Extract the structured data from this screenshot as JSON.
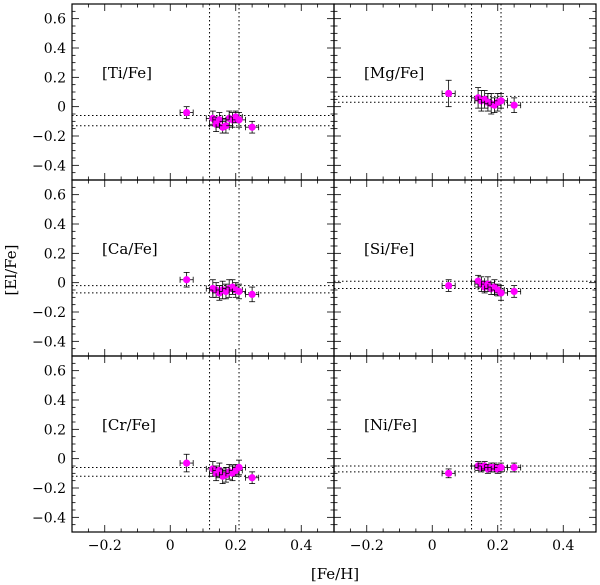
{
  "chart_data": {
    "type": "scatter",
    "layout": "3x2 panels with shared axes",
    "xlabel": "[Fe/H]",
    "ylabel": "[El/Fe]",
    "xlim": [
      -0.3,
      0.5
    ],
    "ylim": [
      -0.5,
      0.7
    ],
    "x_ticks": [
      -0.2,
      0,
      0.2,
      0.4
    ],
    "x_tick_labels": [
      "−0.2",
      "0",
      "0.2",
      "0.4"
    ],
    "y_ticks": [
      -0.4,
      -0.2,
      0,
      0.2,
      0.4,
      0.6
    ],
    "y_tick_labels": [
      "−0.4",
      "−0.2",
      "0",
      "0.2",
      "0.4",
      "0.6"
    ],
    "marker_color": "#ff00ff",
    "vertical_reference_lines": [
      0.12,
      0.21
    ],
    "panels": [
      {
        "label": "[Ti/Fe]",
        "horizontal_reference_lines": [
          -0.06,
          -0.13
        ],
        "points": [
          [
            0.05,
            -0.04
          ],
          [
            0.13,
            -0.08
          ],
          [
            0.14,
            -0.12
          ],
          [
            0.15,
            -0.09
          ],
          [
            0.16,
            -0.14
          ],
          [
            0.17,
            -0.13
          ],
          [
            0.18,
            -0.08
          ],
          [
            0.19,
            -0.09
          ],
          [
            0.2,
            -0.07
          ],
          [
            0.21,
            -0.09
          ],
          [
            0.25,
            -0.14
          ]
        ],
        "xerr": 0.02,
        "yerr": [
          0.04,
          0.05,
          0.05,
          0.05,
          0.04,
          0.05,
          0.05,
          0.05,
          0.04,
          0.05,
          0.04
        ]
      },
      {
        "label": "[Mg/Fe]",
        "horizontal_reference_lines": [
          0.07,
          0.03
        ],
        "points": [
          [
            0.05,
            0.09
          ],
          [
            0.14,
            0.06
          ],
          [
            0.15,
            0.04
          ],
          [
            0.16,
            0.05
          ],
          [
            0.17,
            0.03
          ],
          [
            0.18,
            0.02
          ],
          [
            0.19,
            0.01
          ],
          [
            0.2,
            0.03
          ],
          [
            0.21,
            0.04
          ],
          [
            0.25,
            0.01
          ]
        ],
        "xerr": 0.02,
        "yerr": [
          0.09,
          0.07,
          0.07,
          0.06,
          0.06,
          0.07,
          0.05,
          0.06,
          0.05,
          0.05
        ]
      },
      {
        "label": "[Ca/Fe]",
        "horizontal_reference_lines": [
          -0.02,
          -0.07
        ],
        "points": [
          [
            0.05,
            0.02
          ],
          [
            0.13,
            -0.04
          ],
          [
            0.14,
            -0.05
          ],
          [
            0.15,
            -0.07
          ],
          [
            0.16,
            -0.05
          ],
          [
            0.17,
            -0.06
          ],
          [
            0.18,
            -0.04
          ],
          [
            0.19,
            -0.03
          ],
          [
            0.2,
            -0.05
          ],
          [
            0.21,
            -0.06
          ],
          [
            0.25,
            -0.08
          ]
        ],
        "xerr": 0.02,
        "yerr": [
          0.05,
          0.06,
          0.05,
          0.05,
          0.06,
          0.05,
          0.06,
          0.05,
          0.05,
          0.05,
          0.05
        ]
      },
      {
        "label": "[Si/Fe]",
        "horizontal_reference_lines": [
          0.01,
          -0.04
        ],
        "points": [
          [
            0.05,
            -0.02
          ],
          [
            0.14,
            0.01
          ],
          [
            0.15,
            -0.01
          ],
          [
            0.16,
            -0.03
          ],
          [
            0.17,
            -0.01
          ],
          [
            0.18,
            -0.04
          ],
          [
            0.19,
            -0.03
          ],
          [
            0.2,
            -0.05
          ],
          [
            0.21,
            -0.07
          ],
          [
            0.25,
            -0.06
          ]
        ],
        "xerr": 0.02,
        "yerr": [
          0.04,
          0.04,
          0.05,
          0.04,
          0.05,
          0.04,
          0.05,
          0.04,
          0.05,
          0.04
        ]
      },
      {
        "label": "[Cr/Fe]",
        "horizontal_reference_lines": [
          -0.06,
          -0.12
        ],
        "points": [
          [
            0.05,
            -0.03
          ],
          [
            0.13,
            -0.07
          ],
          [
            0.14,
            -0.1
          ],
          [
            0.15,
            -0.08
          ],
          [
            0.16,
            -0.12
          ],
          [
            0.17,
            -0.11
          ],
          [
            0.18,
            -0.09
          ],
          [
            0.19,
            -0.1
          ],
          [
            0.2,
            -0.08
          ],
          [
            0.21,
            -0.06
          ],
          [
            0.25,
            -0.13
          ]
        ],
        "xerr": 0.02,
        "yerr": [
          0.06,
          0.05,
          0.05,
          0.05,
          0.05,
          0.05,
          0.05,
          0.05,
          0.04,
          0.05,
          0.04
        ]
      },
      {
        "label": "[Ni/Fe]",
        "horizontal_reference_lines": [
          -0.05,
          -0.09
        ],
        "points": [
          [
            0.05,
            -0.1
          ],
          [
            0.14,
            -0.05
          ],
          [
            0.15,
            -0.06
          ],
          [
            0.16,
            -0.05
          ],
          [
            0.17,
            -0.07
          ],
          [
            0.18,
            -0.06
          ],
          [
            0.19,
            -0.06
          ],
          [
            0.2,
            -0.07
          ],
          [
            0.21,
            -0.06
          ],
          [
            0.25,
            -0.06
          ]
        ],
        "xerr": 0.02,
        "yerr": [
          0.03,
          0.03,
          0.03,
          0.03,
          0.03,
          0.03,
          0.03,
          0.03,
          0.03,
          0.03
        ]
      }
    ]
  }
}
